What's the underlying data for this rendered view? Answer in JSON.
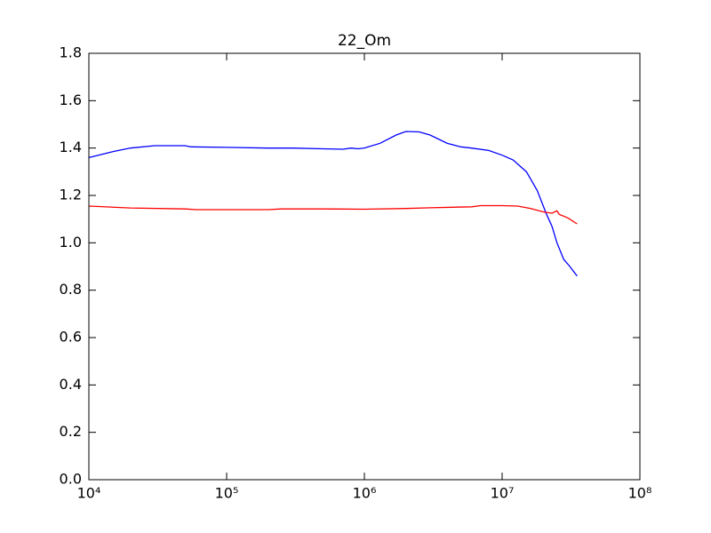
{
  "chart_data": {
    "type": "line",
    "title": "22_Om",
    "xscale": "log",
    "xlim": [
      10000,
      100000000
    ],
    "xticks": [
      {
        "value": 10000,
        "label": "10⁴"
      },
      {
        "value": 100000,
        "label": "10⁵"
      },
      {
        "value": 1000000,
        "label": "10⁶"
      },
      {
        "value": 10000000,
        "label": "10⁷"
      },
      {
        "value": 100000000,
        "label": "10⁸"
      }
    ],
    "ylim": [
      0,
      1.8
    ],
    "yticks": [
      {
        "value": 0,
        "label": "0.0"
      },
      0.2,
      0.4,
      0.6,
      0.8,
      {
        "value": 1,
        "label": "1.0"
      },
      1.2,
      1.4,
      1.6,
      1.8
    ],
    "series": [
      {
        "color": "#0000ff",
        "x": [
          10000,
          15000,
          20000,
          30000,
          50000,
          55000,
          100000,
          200000,
          300000,
          500000,
          700000,
          800000,
          900000,
          1000000,
          1300000,
          1700000,
          2000000,
          2500000,
          3000000,
          4000000,
          5000000,
          6000000,
          8000000,
          10000000,
          12000000,
          15000000,
          18000000,
          21000000,
          23000000,
          25000000,
          28000000,
          31000000,
          35000000
        ],
        "values": [
          1.36,
          1.385,
          1.4,
          1.41,
          1.41,
          1.405,
          1.403,
          1.4,
          1.4,
          1.397,
          1.395,
          1.4,
          1.397,
          1.4,
          1.42,
          1.455,
          1.47,
          1.468,
          1.455,
          1.42,
          1.405,
          1.4,
          1.39,
          1.37,
          1.35,
          1.3,
          1.22,
          1.12,
          1.07,
          1.0,
          0.93,
          0.9,
          0.86
        ]
      },
      {
        "color": "#ff0000",
        "x": [
          10000,
          20000,
          50000,
          60000,
          100000,
          200000,
          250000,
          500000,
          1000000,
          2000000,
          3000000,
          6000000,
          7000000,
          10000000,
          13000000,
          16000000,
          20000000,
          23000000,
          25000000,
          26000000,
          30000000,
          35000000
        ],
        "values": [
          1.155,
          1.147,
          1.143,
          1.14,
          1.14,
          1.14,
          1.143,
          1.143,
          1.142,
          1.145,
          1.148,
          1.152,
          1.157,
          1.157,
          1.155,
          1.145,
          1.13,
          1.125,
          1.135,
          1.12,
          1.105,
          1.08
        ]
      }
    ]
  }
}
